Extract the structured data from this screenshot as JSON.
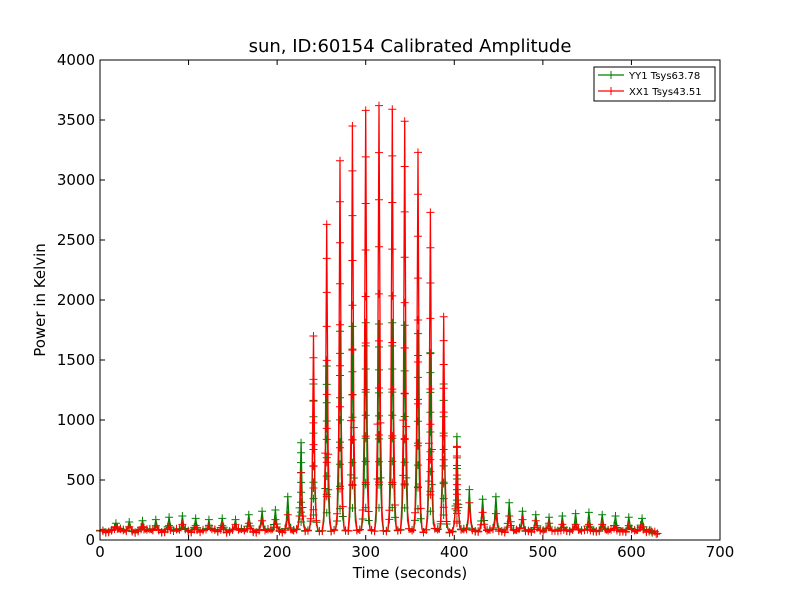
{
  "chart_data": {
    "type": "line",
    "title": "sun, ID:60154 Calibrated Amplitude",
    "xlabel": "Time (seconds)",
    "ylabel": "Power in Kelvin",
    "xlim": [
      0,
      700
    ],
    "ylim": [
      0,
      4000
    ],
    "xticks": [
      0,
      100,
      200,
      300,
      400,
      500,
      600,
      700
    ],
    "yticks": [
      0,
      500,
      1000,
      1500,
      2000,
      2500,
      3000,
      3500,
      4000
    ],
    "grid": false,
    "legend_position": "top-right",
    "marker": "+",
    "series": [
      {
        "name": "YY1 Tsys63.78",
        "color": "#008000",
        "peaks": [
          {
            "x": 18,
            "y": 140
          },
          {
            "x": 33,
            "y": 150
          },
          {
            "x": 48,
            "y": 160
          },
          {
            "x": 63,
            "y": 170
          },
          {
            "x": 78,
            "y": 190
          },
          {
            "x": 93,
            "y": 200
          },
          {
            "x": 108,
            "y": 180
          },
          {
            "x": 123,
            "y": 170
          },
          {
            "x": 138,
            "y": 180
          },
          {
            "x": 153,
            "y": 170
          },
          {
            "x": 168,
            "y": 210
          },
          {
            "x": 183,
            "y": 240
          },
          {
            "x": 198,
            "y": 250
          },
          {
            "x": 212,
            "y": 360
          },
          {
            "x": 227,
            "y": 810
          },
          {
            "x": 241,
            "y": 1300
          },
          {
            "x": 256,
            "y": 1450
          },
          {
            "x": 271,
            "y": 1740
          },
          {
            "x": 285,
            "y": 1780
          },
          {
            "x": 300,
            "y": 1810
          },
          {
            "x": 315,
            "y": 1800
          },
          {
            "x": 330,
            "y": 1810
          },
          {
            "x": 344,
            "y": 1790
          },
          {
            "x": 359,
            "y": 1720
          },
          {
            "x": 373,
            "y": 1560
          },
          {
            "x": 388,
            "y": 1300
          },
          {
            "x": 403,
            "y": 860
          },
          {
            "x": 417,
            "y": 420
          },
          {
            "x": 432,
            "y": 340
          },
          {
            "x": 447,
            "y": 360
          },
          {
            "x": 462,
            "y": 310
          },
          {
            "x": 477,
            "y": 240
          },
          {
            "x": 492,
            "y": 210
          },
          {
            "x": 507,
            "y": 190
          },
          {
            "x": 522,
            "y": 200
          },
          {
            "x": 537,
            "y": 220
          },
          {
            "x": 552,
            "y": 230
          },
          {
            "x": 567,
            "y": 210
          },
          {
            "x": 582,
            "y": 200
          },
          {
            "x": 597,
            "y": 190
          },
          {
            "x": 612,
            "y": 180
          },
          {
            "x": 622,
            "y": 80
          }
        ],
        "baseline": 60
      },
      {
        "name": "XX1 Tsys43.51",
        "color": "#ff0000",
        "peaks": [
          {
            "x": 18,
            "y": 110
          },
          {
            "x": 33,
            "y": 110
          },
          {
            "x": 48,
            "y": 110
          },
          {
            "x": 63,
            "y": 120
          },
          {
            "x": 78,
            "y": 120
          },
          {
            "x": 93,
            "y": 130
          },
          {
            "x": 108,
            "y": 120
          },
          {
            "x": 123,
            "y": 120
          },
          {
            "x": 138,
            "y": 120
          },
          {
            "x": 153,
            "y": 130
          },
          {
            "x": 168,
            "y": 140
          },
          {
            "x": 183,
            "y": 160
          },
          {
            "x": 198,
            "y": 170
          },
          {
            "x": 212,
            "y": 210
          },
          {
            "x": 227,
            "y": 560
          },
          {
            "x": 241,
            "y": 1700
          },
          {
            "x": 256,
            "y": 2630
          },
          {
            "x": 271,
            "y": 3160
          },
          {
            "x": 285,
            "y": 3450
          },
          {
            "x": 300,
            "y": 3580
          },
          {
            "x": 315,
            "y": 3620
          },
          {
            "x": 330,
            "y": 3590
          },
          {
            "x": 344,
            "y": 3490
          },
          {
            "x": 359,
            "y": 3230
          },
          {
            "x": 373,
            "y": 2730
          },
          {
            "x": 388,
            "y": 1860
          },
          {
            "x": 403,
            "y": 780
          },
          {
            "x": 417,
            "y": 310
          },
          {
            "x": 432,
            "y": 230
          },
          {
            "x": 447,
            "y": 220
          },
          {
            "x": 462,
            "y": 200
          },
          {
            "x": 477,
            "y": 170
          },
          {
            "x": 492,
            "y": 160
          },
          {
            "x": 507,
            "y": 140
          },
          {
            "x": 522,
            "y": 130
          },
          {
            "x": 537,
            "y": 130
          },
          {
            "x": 552,
            "y": 130
          },
          {
            "x": 567,
            "y": 130
          },
          {
            "x": 582,
            "y": 120
          },
          {
            "x": 597,
            "y": 120
          },
          {
            "x": 612,
            "y": 110
          },
          {
            "x": 628,
            "y": 50
          }
        ],
        "baseline": 55
      }
    ]
  }
}
